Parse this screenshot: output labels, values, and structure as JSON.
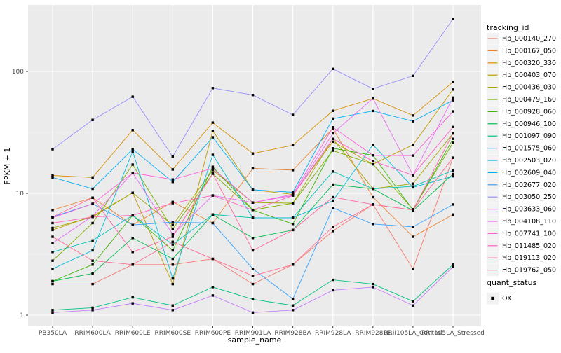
{
  "figure": {
    "background": "#FFFFFF",
    "panel_background": "#EBEBEB",
    "gridline_color": "#FFFFFF",
    "tick_label_color": "#4D4D4D",
    "axis_title_color": "#000000",
    "legend_key_background": "#F2F2F2",
    "point_color": "#000000"
  },
  "chart_data": {
    "type": "line",
    "title": "",
    "xlabel": "sample_name",
    "ylabel": "FPKM + 1",
    "y_scale": "log10",
    "y_ticks": [
      1,
      10,
      100
    ],
    "y_tick_labels": [
      "1",
      "10",
      "100"
    ],
    "y_minor_ticks": [
      3.162,
      31.62,
      316.2
    ],
    "ylim": [
      0.8,
      350
    ],
    "grid": true,
    "legend_position": "right",
    "categories": [
      "PB350LA",
      "RRIM600LA",
      "RRIM600LE",
      "RRIM600SE",
      "RRIM600PE",
      "RRIM901LA",
      "RRIM928BA",
      "RRIM928LA",
      "RRIM928LE",
      "RRII105LA_Control",
      "RRII105LA_Stressed"
    ],
    "legend_title": "tracking_id",
    "series": [
      {
        "name": "Hb_000140_270",
        "color": "#F8766D",
        "values": [
          1.8,
          1.8,
          2.6,
          2.6,
          2.9,
          1.8,
          2.6,
          4.9,
          8.1,
          2.4,
          19.6
        ]
      },
      {
        "name": "Hb_000167_050",
        "color": "#EA8331",
        "values": [
          7.3,
          9.2,
          5.5,
          8.5,
          5.7,
          16,
          15.5,
          34,
          9.3,
          4.4,
          6.7
        ]
      },
      {
        "name": "Hb_000320_330",
        "color": "#D89000",
        "values": [
          14,
          13.5,
          33,
          15.7,
          38,
          21.2,
          24.8,
          47.5,
          60,
          43.5,
          82
        ]
      },
      {
        "name": "Hb_000403_070",
        "color": "#C09B00",
        "values": [
          5.0,
          6.5,
          10.1,
          1.8,
          32.6,
          10.7,
          9.8,
          26.5,
          17.3,
          25,
          71
        ]
      },
      {
        "name": "Hb_000436_030",
        "color": "#A3A500",
        "values": [
          5.2,
          6.4,
          10.1,
          5.5,
          15.5,
          8.4,
          8.3,
          28,
          10.9,
          12,
          31
        ]
      },
      {
        "name": "Hb_000479_160",
        "color": "#7CAE00",
        "values": [
          2.8,
          5.7,
          17.2,
          5.1,
          14.5,
          7.3,
          8.3,
          22.4,
          17.3,
          7.4,
          26
        ]
      },
      {
        "name": "Hb_000928_060",
        "color": "#39B600",
        "values": [
          1.9,
          2.6,
          6.6,
          3.4,
          16.5,
          7.3,
          5.6,
          23.4,
          20.5,
          7.3,
          28
        ]
      },
      {
        "name": "Hb_000946_100",
        "color": "#00BB4E",
        "values": [
          1.9,
          2.2,
          4.3,
          2.9,
          6.7,
          4.3,
          5.0,
          11.8,
          10.9,
          7.2,
          14.4
        ]
      },
      {
        "name": "Hb_001097_090",
        "color": "#00C087",
        "values": [
          1.1,
          1.15,
          1.4,
          1.2,
          1.7,
          1.35,
          1.2,
          1.95,
          1.8,
          1.3,
          2.6
        ]
      },
      {
        "name": "Hb_001575_060",
        "color": "#00C0B8",
        "values": [
          3.3,
          4.1,
          6.6,
          3.8,
          6.7,
          6.3,
          6.3,
          15.1,
          10.9,
          11.4,
          15.4
        ]
      },
      {
        "name": "Hb_002503_020",
        "color": "#00BCD8",
        "values": [
          2.4,
          3.4,
          22,
          2.0,
          20.7,
          6.3,
          6.3,
          8.7,
          25,
          11.2,
          13.8
        ]
      },
      {
        "name": "Hb_002609_040",
        "color": "#00B0F6",
        "values": [
          13.5,
          10.9,
          23,
          12.4,
          28.8,
          10.7,
          10.2,
          41,
          47.4,
          39,
          58
        ]
      },
      {
        "name": "Hb_002677_020",
        "color": "#35A2FF",
        "values": [
          6.4,
          8.2,
          5.5,
          5.8,
          5.7,
          2.4,
          1.36,
          7.6,
          5.6,
          5.3,
          8.1
        ]
      },
      {
        "name": "Hb_003050_250",
        "color": "#9590FF",
        "values": [
          23,
          40,
          62,
          20,
          73,
          64,
          44,
          105,
          72,
          92,
          270
        ]
      },
      {
        "name": "Hb_003633_060",
        "color": "#C77CFF",
        "values": [
          1.05,
          1.1,
          1.25,
          1.1,
          1.45,
          1.05,
          1.1,
          1.6,
          1.7,
          1.2,
          2.5
        ]
      },
      {
        "name": "Hb_004108_110",
        "color": "#E76BF3",
        "values": [
          3.9,
          6.5,
          14.7,
          4.6,
          9.6,
          8.4,
          9.6,
          31,
          60,
          14.1,
          61
        ]
      },
      {
        "name": "Hb_007741_100",
        "color": "#FA62DB",
        "values": [
          6.3,
          8.2,
          14.7,
          13,
          16,
          8.4,
          9.8,
          34.8,
          20.5,
          20.4,
          47
        ]
      },
      {
        "name": "Hb_011485_020",
        "color": "#FF61C3",
        "values": [
          5.7,
          6.4,
          6.6,
          8.3,
          9.6,
          7.3,
          9.6,
          28,
          18.4,
          14.1,
          35
        ]
      },
      {
        "name": "Hb_019113_020",
        "color": "#FF67A4",
        "values": [
          6.4,
          9.2,
          3.3,
          4.4,
          14.5,
          3.4,
          5.0,
          9.3,
          8.1,
          7.3,
          31
        ]
      },
      {
        "name": "Hb_019762_050",
        "color": "#FF6C92",
        "values": [
          4.4,
          2.8,
          2.6,
          4.0,
          2.9,
          2.1,
          2.6,
          5.3,
          8.1,
          7.3,
          19.6
        ]
      }
    ],
    "point_shape": "filled-square",
    "quant_legend": {
      "title": "quant_status",
      "items": [
        {
          "label": "OK"
        }
      ]
    }
  }
}
